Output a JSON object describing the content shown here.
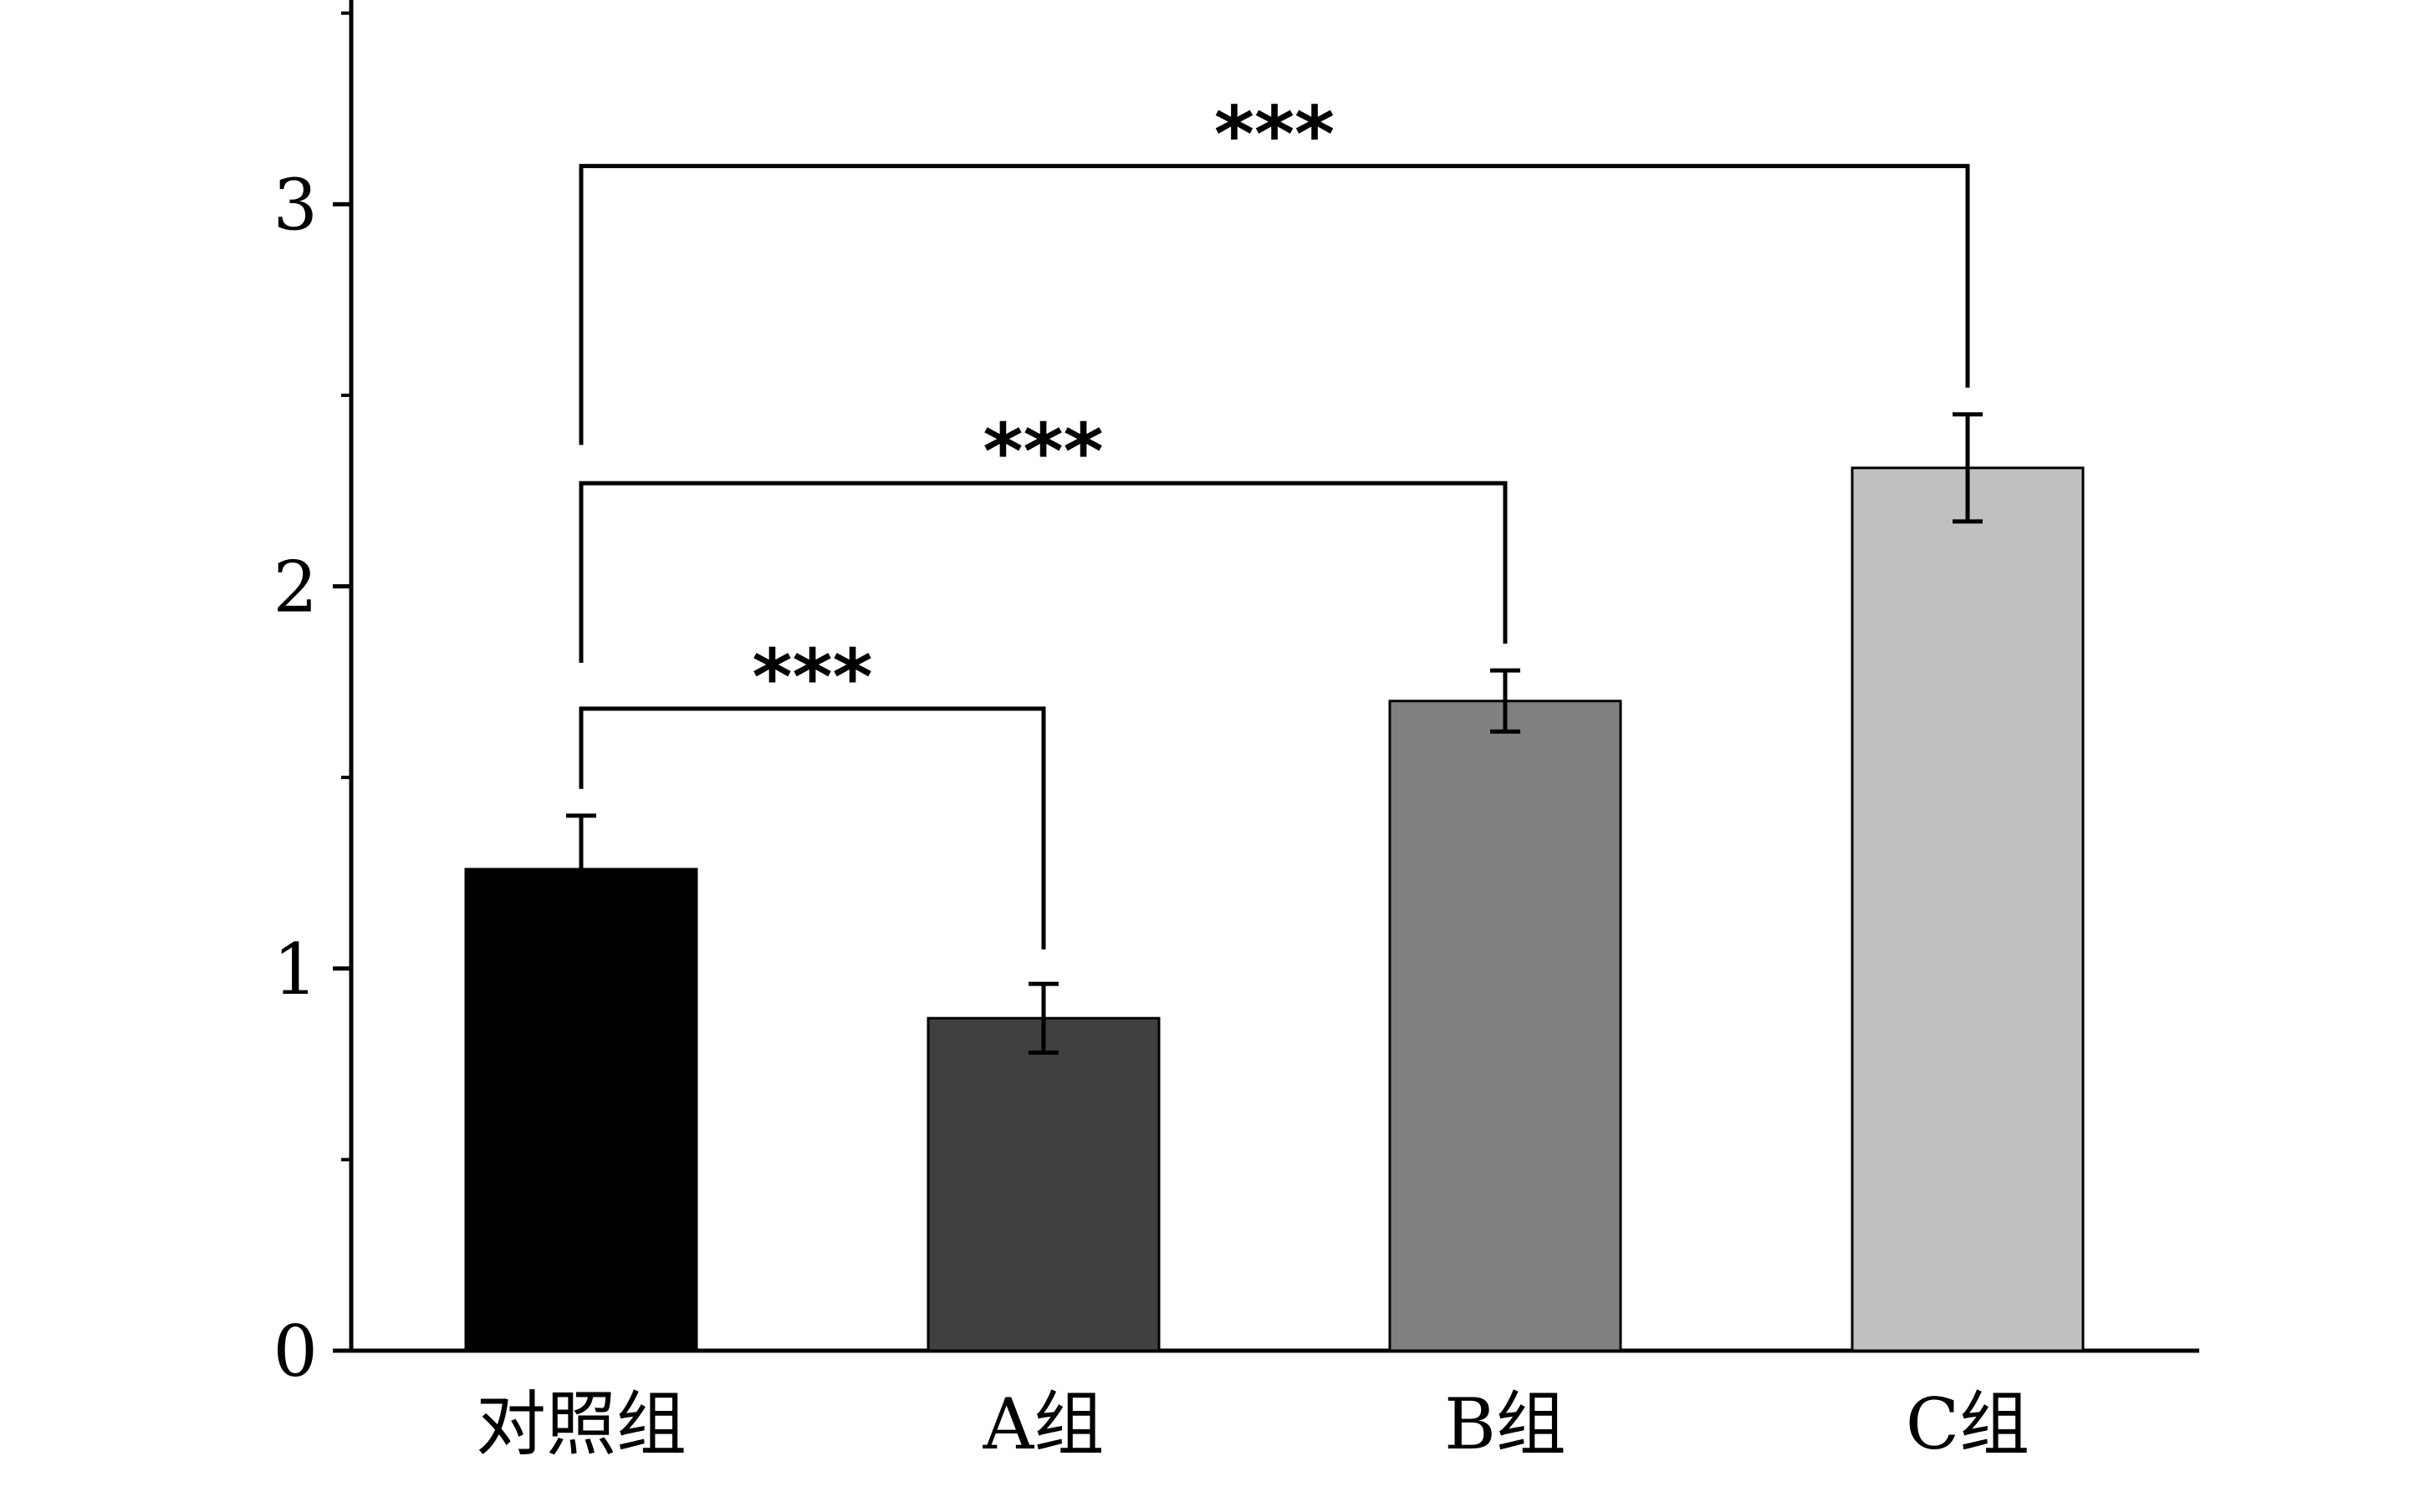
{
  "chart_data": {
    "type": "bar",
    "categories": [
      "对照组",
      "A组",
      "B组",
      "C组"
    ],
    "values": [
      1.26,
      0.87,
      1.7,
      2.31
    ],
    "errors": [
      0.14,
      0.09,
      0.08,
      0.14
    ],
    "colors": [
      "#000000",
      "#404040",
      "#808080",
      "#c0c0c0"
    ],
    "ylim": [
      0,
      3.6
    ],
    "yticks": [
      0,
      1,
      2,
      3
    ],
    "yticks_minor": [
      0.5,
      1.5,
      2.5,
      3.5
    ],
    "title": "",
    "xlabel": "",
    "ylabel": "",
    "grid": false,
    "significance": [
      {
        "from": 0,
        "to": 1,
        "label": "***",
        "y": 1.68,
        "left_end": 1.47,
        "right_end": 1.05
      },
      {
        "from": 0,
        "to": 2,
        "label": "***",
        "y": 2.27,
        "left_end": 1.8,
        "right_end": 1.85
      },
      {
        "from": 0,
        "to": 3,
        "label": "***",
        "y": 3.1,
        "left_end": 2.37,
        "right_end": 2.52
      }
    ]
  }
}
